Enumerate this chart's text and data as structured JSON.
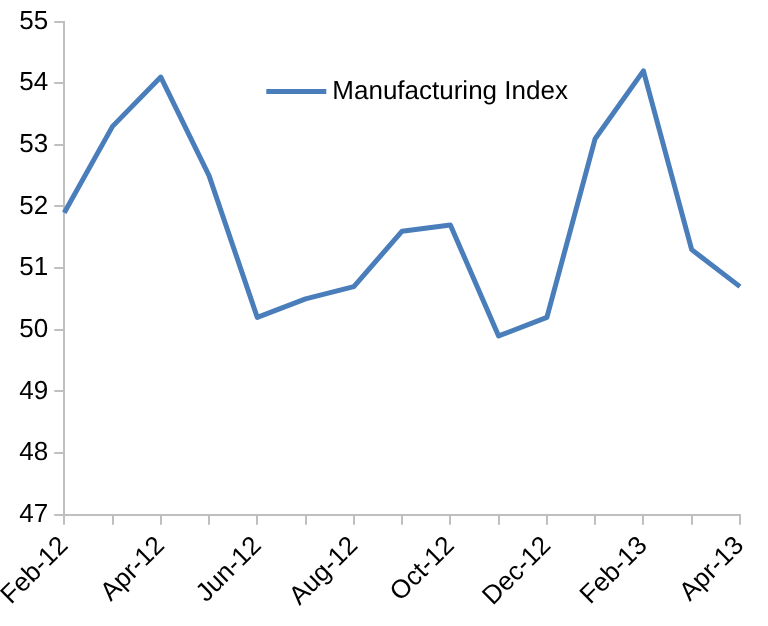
{
  "chart_data": {
    "type": "line",
    "categories": [
      "Feb-12",
      null,
      "Apr-12",
      null,
      "Jun-12",
      null,
      "Aug-12",
      null,
      "Oct-12",
      null,
      "Dec-12",
      null,
      "Feb-13",
      null,
      "Apr-13"
    ],
    "series": [
      {
        "name": "Manufacturing Index",
        "color": "#4a7ebb",
        "values": [
          51.9,
          53.3,
          54.1,
          52.5,
          50.2,
          50.5,
          50.7,
          51.6,
          51.7,
          49.9,
          50.2,
          53.1,
          54.2,
          51.3,
          50.7
        ]
      }
    ],
    "ylim": [
      47,
      55
    ],
    "yticks": [
      47,
      48,
      49,
      50,
      51,
      52,
      53,
      54,
      55
    ],
    "grid": false,
    "legend": "top",
    "marker": "none",
    "line_style": "solid"
  }
}
